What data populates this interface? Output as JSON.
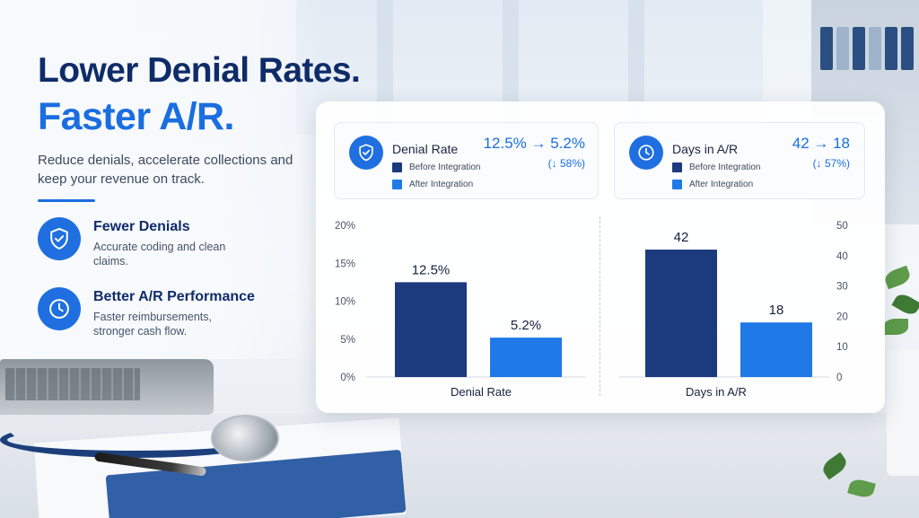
{
  "hero": {
    "title_line1": "Lower Denial Rates.",
    "title_line2": "Faster A/R.",
    "subtitle": "Reduce denials, accelerate collections and keep your revenue on track."
  },
  "features": [
    {
      "title": "Fewer Denials",
      "description": "Accurate coding and clean claims.",
      "icon": "shield-check-icon"
    },
    {
      "title": "Better A/R Performance",
      "description": "Faster reimbursements, stronger cash flow.",
      "icon": "clock-icon"
    }
  ],
  "kpis": [
    {
      "label": "Denial Rate",
      "value": "12.5% → 5.2%",
      "change": "(↓ 58%)",
      "icon": "shield-check-icon",
      "legend": [
        "Before Integration",
        "After Integration"
      ]
    },
    {
      "label": "Days in A/R",
      "value": "42 → 18",
      "change": "(↓ 57%)",
      "icon": "clock-icon",
      "legend": [
        "Before Integration",
        "After Integration"
      ]
    }
  ],
  "colors": {
    "before": "#1c3a7e",
    "after": "#1f7ae8",
    "accent": "#1a6ee0",
    "navy": "#0f2c69"
  },
  "chart_data": [
    {
      "type": "bar",
      "categories": [
        "Before Integration",
        "After Integration"
      ],
      "values": [
        12.5,
        5.2
      ],
      "data_labels": [
        "12.5%",
        "5.2%"
      ],
      "xlabel": "Denial Rate",
      "ylabel": "",
      "ylim": [
        0,
        20
      ],
      "yticks": [
        "0%",
        "5%",
        "10%",
        "15%",
        "20%"
      ],
      "y_axis_side": "left",
      "grid": false
    },
    {
      "type": "bar",
      "categories": [
        "Before Integration",
        "After Integration"
      ],
      "values": [
        42,
        18
      ],
      "data_labels": [
        "42",
        "18"
      ],
      "xlabel": "Days in A/R",
      "ylabel": "",
      "ylim": [
        0,
        50
      ],
      "yticks": [
        "0",
        "10",
        "20",
        "30",
        "40",
        "50"
      ],
      "y_axis_side": "right",
      "grid": false
    }
  ]
}
